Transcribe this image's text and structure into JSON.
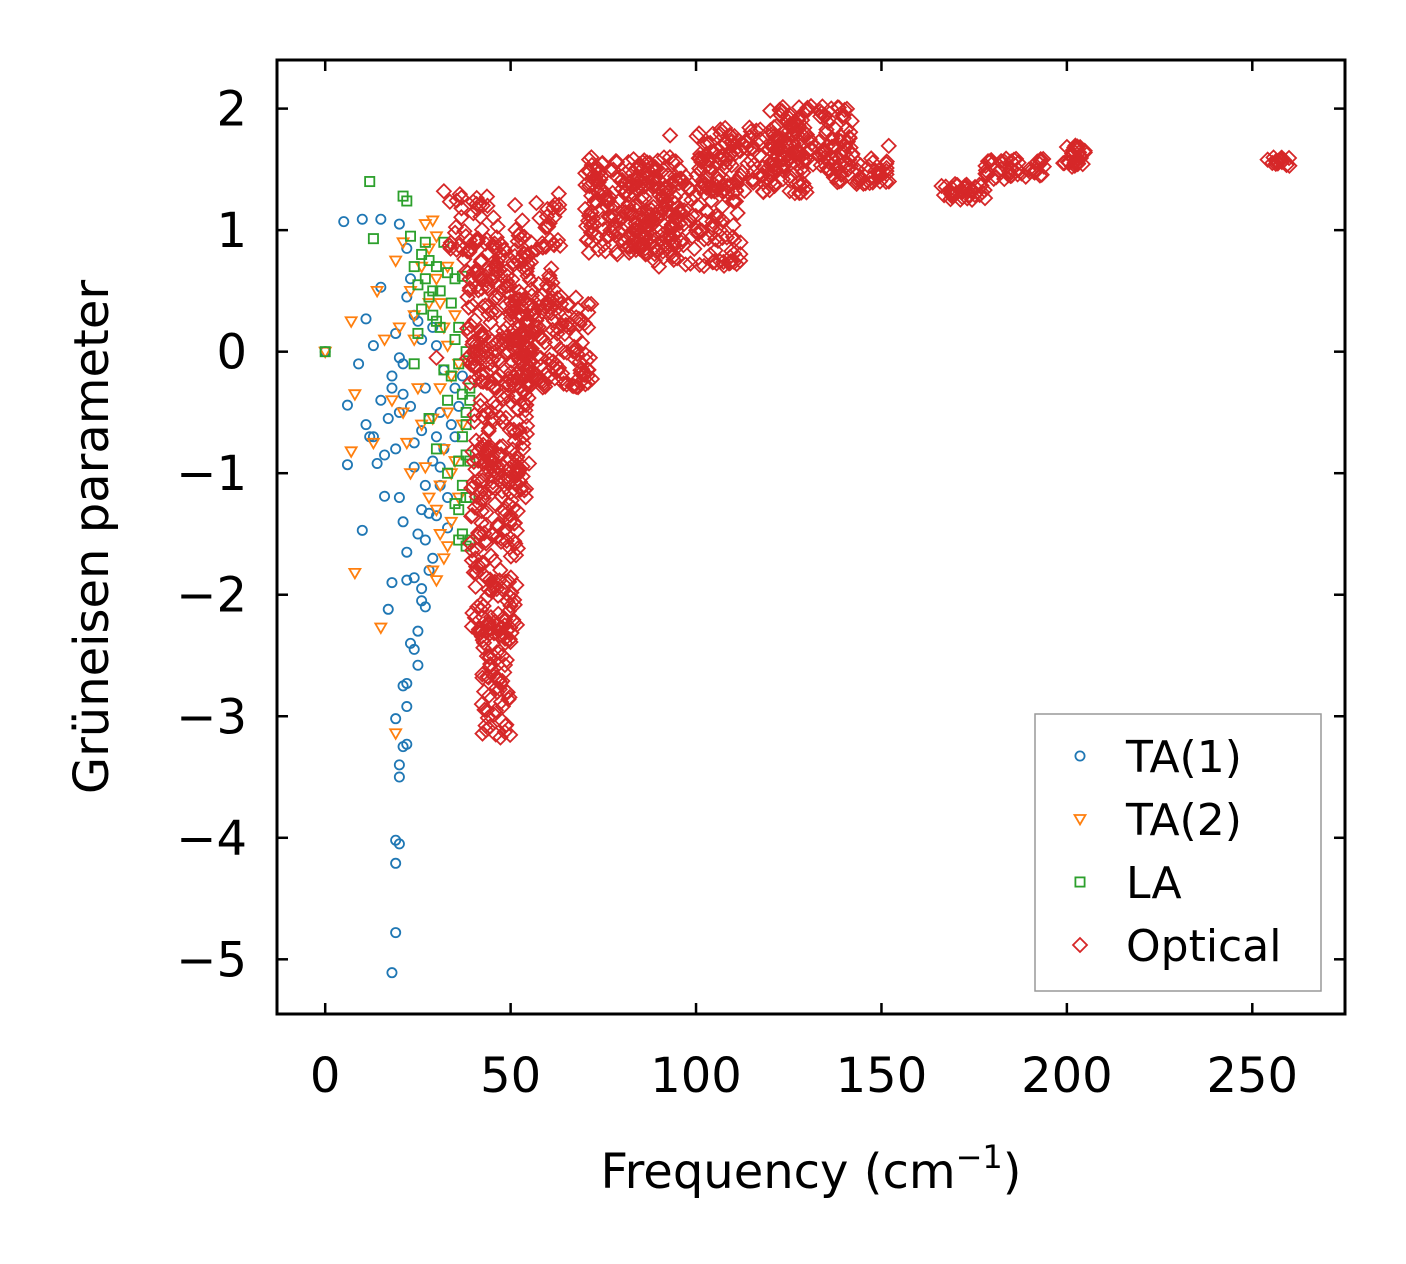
{
  "chart_data": {
    "type": "scatter",
    "title": "",
    "xlabel_main": "Frequency (cm",
    "xlabel_sup": "−1",
    "xlabel_close": ")",
    "ylabel": "Grüneisen parameter",
    "xlim": [
      -13,
      275
    ],
    "ylim": [
      -5.45,
      2.4
    ],
    "xticks": [
      0,
      50,
      100,
      150,
      200,
      250
    ],
    "xtick_labels": [
      "0",
      "50",
      "100",
      "150",
      "200",
      "250"
    ],
    "yticks": [
      2,
      1,
      0,
      -1,
      -2,
      -3,
      -4,
      -5
    ],
    "ytick_labels": [
      "2",
      "1",
      "0",
      "−1",
      "−2",
      "−3",
      "−4",
      "−5"
    ],
    "legend_position": "lower-right",
    "series": [
      {
        "name": "TA(1)",
        "marker": "circle",
        "color": "#1f77b4",
        "points": [
          [
            0,
            0
          ],
          [
            5,
            1.07
          ],
          [
            10,
            1.09
          ],
          [
            15,
            1.09
          ],
          [
            20,
            1.05
          ],
          [
            13,
            0.05
          ],
          [
            15,
            0.53
          ],
          [
            11,
            0.27
          ],
          [
            6,
            -0.44
          ],
          [
            6,
            -0.93
          ],
          [
            9,
            -0.1
          ],
          [
            11,
            -0.6
          ],
          [
            12,
            -0.7
          ],
          [
            14,
            -0.92
          ],
          [
            15,
            -0.4
          ],
          [
            16,
            -1.19
          ],
          [
            10,
            -1.47
          ],
          [
            17,
            -2.12
          ],
          [
            17,
            -0.55
          ],
          [
            18,
            -0.3
          ],
          [
            19,
            -0.8
          ],
          [
            20,
            -1.2
          ],
          [
            20,
            -0.5
          ],
          [
            21,
            -1.4
          ],
          [
            22,
            -1.65
          ],
          [
            22,
            -1.88
          ],
          [
            23,
            -2.4
          ],
          [
            25,
            -2.58
          ],
          [
            25,
            -2.3
          ],
          [
            26,
            -2.05
          ],
          [
            26,
            -1.95
          ],
          [
            24,
            -2.45
          ],
          [
            22,
            -2.73
          ],
          [
            21,
            -2.75
          ],
          [
            22,
            -2.92
          ],
          [
            21,
            -3.25
          ],
          [
            22,
            -3.23
          ],
          [
            20,
            -3.4
          ],
          [
            20,
            -3.5
          ],
          [
            19,
            -3.02
          ],
          [
            19,
            -4.02
          ],
          [
            20,
            -4.05
          ],
          [
            19,
            -4.21
          ],
          [
            19,
            -4.78
          ],
          [
            18,
            -5.11
          ],
          [
            24,
            -1.86
          ],
          [
            25,
            -1.5
          ],
          [
            26,
            -1.3
          ],
          [
            27,
            -1.1
          ],
          [
            28,
            -1.33
          ],
          [
            29,
            -0.9
          ],
          [
            30,
            -0.7
          ],
          [
            31,
            -0.5
          ],
          [
            32,
            -0.8
          ],
          [
            34,
            -0.6
          ],
          [
            35,
            -0.7
          ],
          [
            28,
            -0.55
          ],
          [
            27,
            -0.3
          ],
          [
            26,
            0.1
          ],
          [
            25,
            0.25
          ],
          [
            24,
            0.3
          ],
          [
            23,
            0.6
          ],
          [
            22,
            0.85
          ],
          [
            21,
            -0.1
          ],
          [
            20,
            -0.05
          ],
          [
            19,
            0.15
          ],
          [
            18,
            -0.2
          ],
          [
            23,
            -0.45
          ],
          [
            24,
            -0.95
          ],
          [
            26,
            -0.65
          ],
          [
            27,
            -1.55
          ],
          [
            29,
            -1.7
          ],
          [
            30,
            -1.35
          ],
          [
            31,
            -1.1
          ],
          [
            33,
            -1.2
          ],
          [
            36,
            -0.45
          ],
          [
            37,
            -0.2
          ],
          [
            35,
            -0.3
          ],
          [
            32,
            -0.15
          ],
          [
            30,
            0.05
          ],
          [
            29,
            0.2
          ],
          [
            28,
            -1.8
          ],
          [
            27,
            -2.1
          ],
          [
            18,
            -1.9
          ],
          [
            16,
            -0.85
          ],
          [
            13,
            -0.7
          ],
          [
            21,
            -0.35
          ],
          [
            24,
            -0.75
          ],
          [
            31,
            -0.95
          ],
          [
            33,
            -1.45
          ],
          [
            22,
            0.45
          ]
        ]
      },
      {
        "name": "TA(2)",
        "marker": "triangle-down",
        "color": "#ff7f0e",
        "points": [
          [
            0,
            0
          ],
          [
            7,
            0.25
          ],
          [
            8,
            -0.35
          ],
          [
            7,
            -0.82
          ],
          [
            8,
            -1.82
          ],
          [
            15,
            -2.27
          ],
          [
            19,
            -3.14
          ],
          [
            14,
            0.5
          ],
          [
            13,
            -0.75
          ],
          [
            16,
            0.1
          ],
          [
            18,
            -0.4
          ],
          [
            19,
            0.75
          ],
          [
            21,
            0.9
          ],
          [
            23,
            0.5
          ],
          [
            24,
            0.3
          ],
          [
            26,
            0.7
          ],
          [
            27,
            1.05
          ],
          [
            29,
            1.08
          ],
          [
            28,
            0.85
          ],
          [
            30,
            0.6
          ],
          [
            31,
            0.4
          ],
          [
            32,
            0.2
          ],
          [
            33,
            0.05
          ],
          [
            34,
            -0.2
          ],
          [
            33,
            -0.5
          ],
          [
            32,
            -0.8
          ],
          [
            31,
            -1.1
          ],
          [
            30,
            -1.3
          ],
          [
            31,
            -1.5
          ],
          [
            32,
            -1.7
          ],
          [
            30,
            -1.88
          ],
          [
            29,
            -1.8
          ],
          [
            35,
            -0.9
          ],
          [
            36,
            -1.2
          ],
          [
            34,
            -1.4
          ],
          [
            33,
            -1.6
          ],
          [
            28,
            -1.2
          ],
          [
            27,
            -0.95
          ],
          [
            26,
            -0.6
          ],
          [
            25,
            -0.3
          ],
          [
            24,
            0.1
          ],
          [
            23,
            -1.0
          ],
          [
            22,
            -0.75
          ],
          [
            21,
            -0.5
          ],
          [
            20,
            0.2
          ],
          [
            28,
            0.4
          ],
          [
            30,
            0.95
          ],
          [
            33,
            0.7
          ],
          [
            35,
            0.3
          ],
          [
            36,
            -0.1
          ],
          [
            37,
            -0.6
          ],
          [
            34,
            -1.0
          ],
          [
            31,
            -0.3
          ],
          [
            29,
            -0.55
          ]
        ]
      },
      {
        "name": "LA",
        "marker": "square",
        "color": "#2ca02c",
        "points": [
          [
            0,
            0
          ],
          [
            12,
            1.4
          ],
          [
            13,
            0.93
          ],
          [
            21,
            1.28
          ],
          [
            22,
            1.24
          ],
          [
            23,
            0.95
          ],
          [
            24,
            0.7
          ],
          [
            25,
            0.55
          ],
          [
            26,
            0.8
          ],
          [
            27,
            0.6
          ],
          [
            28,
            0.45
          ],
          [
            29,
            0.3
          ],
          [
            30,
            0.7
          ],
          [
            31,
            0.5
          ],
          [
            32,
            0.9
          ],
          [
            33,
            0.65
          ],
          [
            34,
            0.4
          ],
          [
            35,
            0.6
          ],
          [
            36,
            0.2
          ],
          [
            37,
            0.62
          ],
          [
            38,
            0.0
          ],
          [
            39,
            -0.3
          ],
          [
            38,
            -0.5
          ],
          [
            37,
            -0.7
          ],
          [
            36,
            -0.9
          ],
          [
            37,
            -1.1
          ],
          [
            36,
            -1.3
          ],
          [
            37,
            -1.5
          ],
          [
            38,
            -1.6
          ],
          [
            39,
            -1.55
          ],
          [
            38,
            -1.2
          ],
          [
            39,
            -0.9
          ],
          [
            38,
            -0.6
          ],
          [
            39,
            -0.4
          ],
          [
            36,
            -0.1
          ],
          [
            35,
            0.1
          ],
          [
            34,
            -0.2
          ],
          [
            33,
            -0.4
          ],
          [
            32,
            -0.15
          ],
          [
            31,
            0.2
          ],
          [
            30,
            0.25
          ],
          [
            29,
            0.5
          ],
          [
            28,
            0.75
          ],
          [
            27,
            0.9
          ],
          [
            26,
            0.35
          ],
          [
            25,
            0.15
          ],
          [
            24,
            -0.1
          ],
          [
            28,
            -0.55
          ],
          [
            30,
            -0.8
          ],
          [
            33,
            -1.0
          ],
          [
            35,
            -1.25
          ],
          [
            36,
            -1.55
          ],
          [
            37,
            -0.35
          ],
          [
            39,
            -1.2
          ],
          [
            38,
            -0.85
          ]
        ]
      },
      {
        "name": "Optical",
        "marker": "diamond",
        "color": "#d62728",
        "clusters": [
          {
            "fx": [
              38,
              56
            ],
            "g": [
              -0.3,
              0.95
            ],
            "n": 160
          },
          {
            "fx": [
              40,
              55
            ],
            "g": [
              -1.2,
              0.2
            ],
            "n": 140
          },
          {
            "fx": [
              39,
              52
            ],
            "g": [
              -2.4,
              -0.8
            ],
            "n": 150
          },
          {
            "fx": [
              42,
              50
            ],
            "g": [
              -3.2,
              -2.2
            ],
            "n": 70
          },
          {
            "fx": [
              50,
              72
            ],
            "g": [
              -0.3,
              0.45
            ],
            "n": 150
          },
          {
            "fx": [
              52,
              64
            ],
            "g": [
              0.3,
              1.25
            ],
            "n": 55
          },
          {
            "fx": [
              33,
              52
            ],
            "g": [
              0.7,
              1.3
            ],
            "n": 45
          },
          {
            "fx": [
              70,
              96
            ],
            "g": [
              0.8,
              1.6
            ],
            "n": 230
          },
          {
            "fx": [
              84,
              112
            ],
            "g": [
              0.7,
              1.45
            ],
            "n": 150
          },
          {
            "fx": [
              100,
              130
            ],
            "g": [
              1.3,
              1.85
            ],
            "n": 160
          },
          {
            "fx": [
              120,
              142
            ],
            "g": [
              1.5,
              2.02
            ],
            "n": 120
          },
          {
            "fx": [
              135,
              152
            ],
            "g": [
              1.38,
              1.7
            ],
            "n": 55
          },
          {
            "fx": [
              166,
              178
            ],
            "g": [
              1.25,
              1.38
            ],
            "n": 40
          },
          {
            "fx": [
              177,
              194
            ],
            "g": [
              1.42,
              1.6
            ],
            "n": 45
          },
          {
            "fx": [
              199,
              205
            ],
            "g": [
              1.5,
              1.7
            ],
            "n": 25
          },
          {
            "fx": [
              254,
              260
            ],
            "g": [
              1.52,
              1.6
            ],
            "n": 14
          }
        ],
        "points": [
          [
            30,
            -0.05
          ],
          [
            32,
            1.32
          ],
          [
            63,
            1.3
          ],
          [
            90,
            0.7
          ],
          [
            71,
            -0.15
          ],
          [
            258,
            1.56
          ],
          [
            260,
            1.53
          ],
          [
            46,
            -3.15
          ],
          [
            44,
            -3.1
          ],
          [
            131,
            2.02
          ],
          [
            93,
            1.78
          ],
          [
            110,
            1.7
          ],
          [
            152,
            1.4
          ],
          [
            170,
            1.3
          ],
          [
            180,
            1.55
          ],
          [
            190,
            1.48
          ],
          [
            202,
            1.68
          ],
          [
            203,
            1.55
          ]
        ]
      }
    ]
  }
}
